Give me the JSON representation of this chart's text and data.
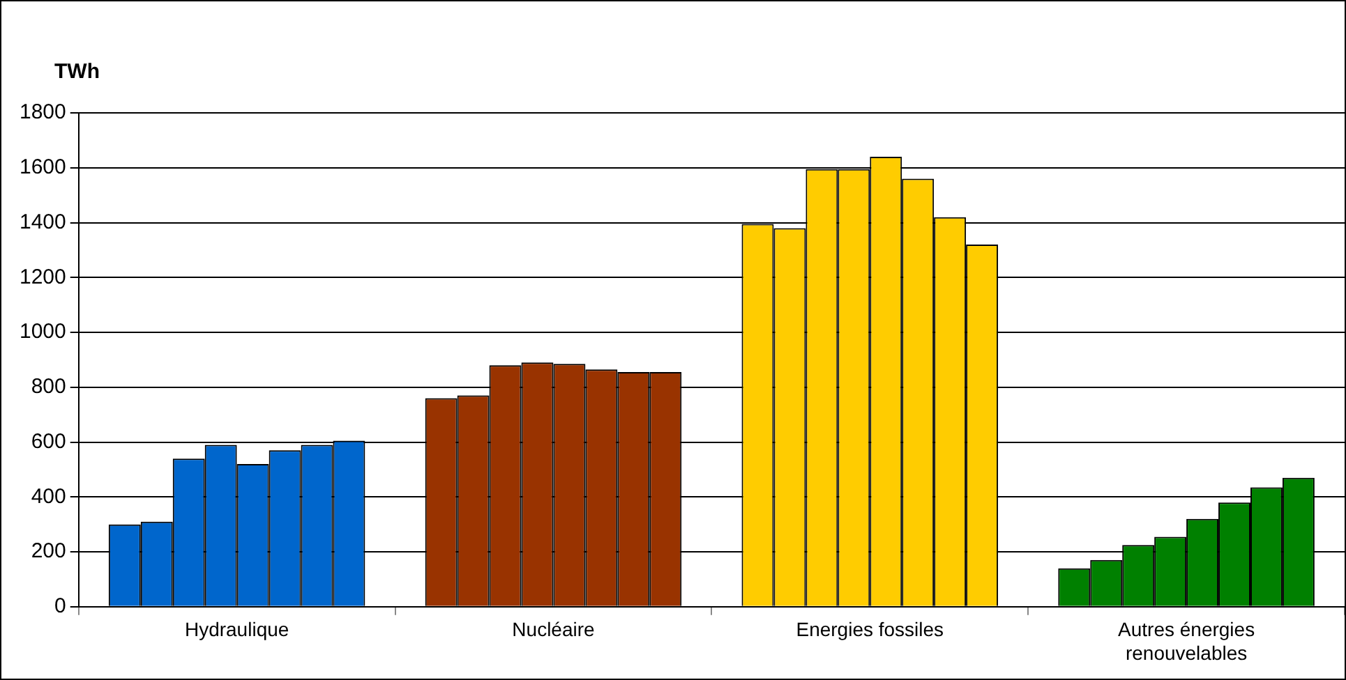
{
  "chart_data": {
    "type": "bar",
    "ylabel": "TWh",
    "categories": [
      "Hydraulique",
      "Nucléaire",
      "Energies fossiles",
      "Autres énergies renouvelables"
    ],
    "series": [
      {
        "colors": [
          "#0066cc",
          "#993300",
          "#ffcc00",
          "#008000"
        ],
        "values": [
          300,
          760,
          1395,
          140
        ]
      },
      {
        "colors": [
          "#0066cc",
          "#993300",
          "#ffcc00",
          "#008000"
        ],
        "values": [
          310,
          770,
          1380,
          170
        ]
      },
      {
        "colors": [
          "#0066cc",
          "#993300",
          "#ffcc00",
          "#008000"
        ],
        "values": [
          540,
          880,
          1595,
          225
        ]
      },
      {
        "colors": [
          "#0066cc",
          "#993300",
          "#ffcc00",
          "#008000"
        ],
        "values": [
          590,
          890,
          1595,
          255
        ]
      },
      {
        "colors": [
          "#0066cc",
          "#993300",
          "#ffcc00",
          "#008000"
        ],
        "values": [
          520,
          885,
          1640,
          320
        ]
      },
      {
        "colors": [
          "#0066cc",
          "#993300",
          "#ffcc00",
          "#008000"
        ],
        "values": [
          570,
          865,
          1560,
          380
        ]
      },
      {
        "colors": [
          "#0066cc",
          "#993300",
          "#ffcc00",
          "#008000"
        ],
        "values": [
          590,
          855,
          1420,
          435
        ]
      },
      {
        "colors": [
          "#0066cc",
          "#993300",
          "#ffcc00",
          "#008000"
        ],
        "values": [
          605,
          855,
          1320,
          470
        ]
      }
    ],
    "ylim": [
      0,
      1800
    ],
    "yticks": [
      0,
      200,
      400,
      600,
      800,
      1000,
      1200,
      1400,
      1600,
      1800
    ],
    "grid": "y",
    "legend": false
  }
}
